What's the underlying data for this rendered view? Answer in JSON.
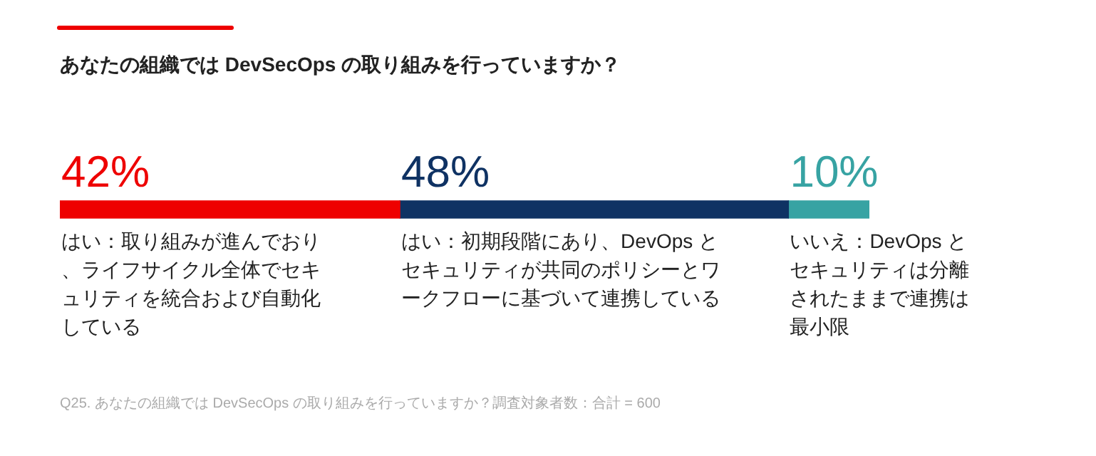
{
  "chart_data": {
    "type": "bar",
    "orientation": "horizontal",
    "stacked": true,
    "title": "あなたの組織では DevSecOps の取り組みを行っていますか？",
    "categories": [
      null
    ],
    "xlim": [
      0,
      100
    ],
    "tick_labels": false,
    "series": [
      {
        "name": "はい：取り組みが進んでおり、ライフサイクル全体でセキュリティを統合および自動化している",
        "color": "#ee0000",
        "values": [
          42
        ],
        "value_labels": [
          "42%"
        ]
      },
      {
        "name": "はい：初期段階にあり、DevOps とセキュリティが共同のポリシーとワークフローに基づいて連携している",
        "color": "#0f3263",
        "values": [
          48
        ],
        "value_labels": [
          "48%"
        ]
      },
      {
        "name": "いいえ：DevOps とセキュリティは分離されたままで連携は最小限",
        "color": "#37a3a3",
        "values": [
          10
        ],
        "value_labels": [
          "10%"
        ]
      }
    ],
    "annotations": [
      "Q25. あなたの組織では DevSecOps の取り組みを行っていますか？調査対象者数：合計 = 600"
    ]
  }
}
